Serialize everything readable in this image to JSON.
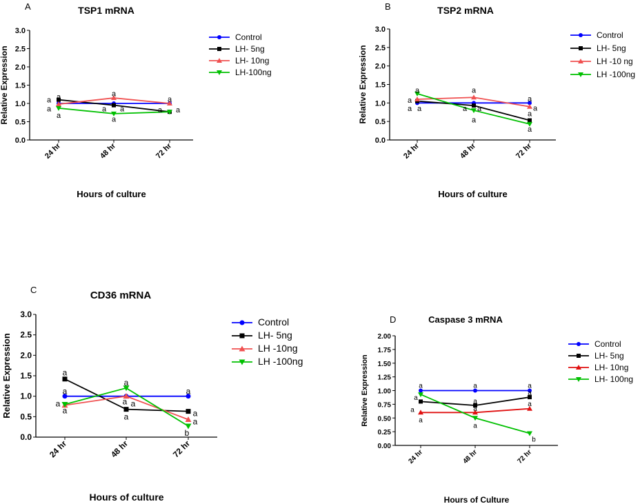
{
  "chart_data": [
    {
      "type": "line",
      "panel": "A",
      "title": "TSP1 mRNA",
      "xlabel": "Hours of culture",
      "ylabel": "Relative Expression",
      "categories": [
        "24 hr",
        "48 hr",
        "72 hr"
      ],
      "ylim": [
        0,
        3
      ],
      "yticks": [
        "0.0",
        "0.5",
        "1.0",
        "1.5",
        "2.0",
        "2.5",
        "3.0"
      ],
      "legend_position": "right",
      "series": [
        {
          "name": "Control",
          "color": "#0000ff",
          "marker": "circle",
          "values": [
            1.0,
            1.0,
            1.0
          ]
        },
        {
          "name": "LH- 5ng",
          "color": "#000000",
          "marker": "square",
          "values": [
            1.1,
            0.95,
            0.77
          ]
        },
        {
          "name": "LH- 10ng",
          "color": "#f05050",
          "marker": "triangle-up",
          "values": [
            0.98,
            1.15,
            1.0
          ]
        },
        {
          "name": "LH-100ng",
          "color": "#00c000",
          "marker": "triangle-down",
          "values": [
            0.87,
            0.72,
            0.77
          ]
        }
      ],
      "annotations": [
        {
          "text": "a",
          "category": 0,
          "y": 1.19,
          "dx": 0
        },
        {
          "text": "a",
          "category": 0,
          "y": 1.1,
          "dx": -14
        },
        {
          "text": "a",
          "category": 0,
          "y": 0.86,
          "dx": -14
        },
        {
          "text": "a",
          "category": 0,
          "y": 0.68,
          "dx": 0
        },
        {
          "text": "a",
          "category": 1,
          "y": 1.27,
          "dx": 0
        },
        {
          "text": "a",
          "category": 1,
          "y": 0.86,
          "dx": -14
        },
        {
          "text": "a",
          "category": 1,
          "y": 0.86,
          "dx": 12
        },
        {
          "text": "a",
          "category": 1,
          "y": 0.58,
          "dx": 0
        },
        {
          "text": "a",
          "category": 2,
          "y": 1.12,
          "dx": 0
        },
        {
          "text": "a",
          "category": 2,
          "y": 0.83,
          "dx": -14
        },
        {
          "text": "a",
          "category": 2,
          "y": 0.83,
          "dx": 12
        }
      ]
    },
    {
      "type": "line",
      "panel": "B",
      "title": "TSP2 mRNA",
      "xlabel": "Hours of culture",
      "ylabel": "Relative Expression",
      "categories": [
        "24 hr",
        "48 hr",
        "72 hr"
      ],
      "ylim": [
        0,
        3
      ],
      "yticks": [
        "0.0",
        "0.5",
        "1.0",
        "1.5",
        "2.0",
        "2.5",
        "3.0"
      ],
      "legend_position": "right",
      "series": [
        {
          "name": "Control",
          "color": "#0000ff",
          "marker": "circle",
          "values": [
            1.0,
            1.0,
            1.0
          ]
        },
        {
          "name": "LH- 5ng",
          "color": "#000000",
          "marker": "square",
          "values": [
            1.05,
            0.93,
            0.53
          ]
        },
        {
          "name": "LH -10 ng",
          "color": "#f05050",
          "marker": "triangle-up",
          "values": [
            1.1,
            1.15,
            0.9
          ]
        },
        {
          "name": "LH -100ng",
          "color": "#00c000",
          "marker": "triangle-down",
          "values": [
            1.25,
            0.8,
            0.43
          ]
        }
      ],
      "annotations": [
        {
          "text": "a",
          "category": 0,
          "y": 1.35,
          "dx": 0
        },
        {
          "text": "a",
          "category": 0,
          "y": 1.08,
          "dx": -11
        },
        {
          "text": "a",
          "category": 0,
          "y": 0.86,
          "dx": -11
        },
        {
          "text": "a",
          "category": 0,
          "y": 0.86,
          "dx": 3
        },
        {
          "text": "a",
          "category": 1,
          "y": 1.35,
          "dx": 0
        },
        {
          "text": "a",
          "category": 1,
          "y": 0.86,
          "dx": -13
        },
        {
          "text": "a",
          "category": 1,
          "y": 0.86,
          "dx": 8
        },
        {
          "text": "a",
          "category": 1,
          "y": 0.55,
          "dx": 0
        },
        {
          "text": "a",
          "category": 2,
          "y": 1.12,
          "dx": 0
        },
        {
          "text": "a",
          "category": 2,
          "y": 0.72,
          "dx": 0
        },
        {
          "text": "a",
          "category": 2,
          "y": 0.87,
          "dx": 8
        },
        {
          "text": "a",
          "category": 2,
          "y": 0.3,
          "dx": 0
        }
      ]
    },
    {
      "type": "line",
      "panel": "C",
      "title": "CD36 mRNA",
      "xlabel": "Hours of culture",
      "ylabel": "Relative Expression",
      "categories": [
        "24 hr",
        "48 hr",
        "72 hr"
      ],
      "ylim": [
        0,
        3
      ],
      "yticks": [
        "0.0",
        "0.5",
        "1.0",
        "1.5",
        "2.0",
        "2.5",
        "3.0"
      ],
      "legend_position": "right",
      "series": [
        {
          "name": "Control",
          "color": "#0000ff",
          "marker": "circle",
          "values": [
            1.0,
            1.0,
            1.0
          ]
        },
        {
          "name": "LH- 5ng",
          "color": "#000000",
          "marker": "square",
          "values": [
            1.42,
            0.68,
            0.63
          ]
        },
        {
          "name": "LH -10ng",
          "color": "#f05050",
          "marker": "triangle-up",
          "values": [
            0.78,
            1.0,
            0.43
          ]
        },
        {
          "name": "LH -100ng",
          "color": "#00c000",
          "marker": "triangle-down",
          "values": [
            0.8,
            1.2,
            0.27
          ]
        }
      ],
      "annotations": [
        {
          "text": "a",
          "category": 0,
          "y": 1.58,
          "dx": 0
        },
        {
          "text": "a",
          "category": 0,
          "y": 1.12,
          "dx": 0
        },
        {
          "text": "a",
          "category": 0,
          "y": 0.82,
          "dx": -10
        },
        {
          "text": "a",
          "category": 0,
          "y": 0.65,
          "dx": 0
        },
        {
          "text": "a",
          "category": 1,
          "y": 1.33,
          "dx": 0
        },
        {
          "text": "a",
          "category": 1,
          "y": 0.87,
          "dx": -2
        },
        {
          "text": "a",
          "category": 1,
          "y": 0.82,
          "dx": 10
        },
        {
          "text": "a",
          "category": 1,
          "y": 0.5,
          "dx": 0
        },
        {
          "text": "a",
          "category": 2,
          "y": 1.12,
          "dx": 0
        },
        {
          "text": "a",
          "category": 2,
          "y": 0.58,
          "dx": 10
        },
        {
          "text": "a",
          "category": 2,
          "y": 0.38,
          "dx": 10
        },
        {
          "text": "b",
          "category": 2,
          "y": 0.1,
          "dx": -2
        }
      ]
    },
    {
      "type": "line",
      "panel": "D",
      "title": "Caspase 3 mRNA",
      "xlabel": "Hours of Culture",
      "ylabel": "Relative Expression",
      "categories": [
        "24 hr",
        "48 hr",
        "72 hr"
      ],
      "ylim": [
        0,
        2
      ],
      "yticks": [
        "0.00",
        "0.25",
        "0.50",
        "0.75",
        "1.00",
        "1.25",
        "1.50",
        "1.75",
        "2.00"
      ],
      "legend_position": "right",
      "series": [
        {
          "name": "Control",
          "color": "#0000ff",
          "marker": "circle",
          "values": [
            1.0,
            1.0,
            1.0
          ]
        },
        {
          "name": "LH- 5ng",
          "color": "#000000",
          "marker": "square",
          "values": [
            0.8,
            0.73,
            0.88
          ]
        },
        {
          "name": "LH- 10ng",
          "color": "#e01010",
          "marker": "triangle-up",
          "values": [
            0.6,
            0.6,
            0.67
          ]
        },
        {
          "name": "LH- 100ng",
          "color": "#00c000",
          "marker": "triangle-down",
          "values": [
            0.93,
            0.5,
            0.22
          ]
        }
      ],
      "annotations": [
        {
          "text": "a",
          "category": 0,
          "y": 1.1,
          "dx": 0
        },
        {
          "text": "a",
          "category": 0,
          "y": 0.88,
          "dx": -7
        },
        {
          "text": "a",
          "category": 0,
          "y": 0.66,
          "dx": -12
        },
        {
          "text": "a",
          "category": 0,
          "y": 0.47,
          "dx": 0
        },
        {
          "text": "a",
          "category": 1,
          "y": 1.1,
          "dx": 0
        },
        {
          "text": "a",
          "category": 1,
          "y": 0.82,
          "dx": 0
        },
        {
          "text": "a",
          "category": 1,
          "y": 0.68,
          "dx": 0
        },
        {
          "text": "a",
          "category": 1,
          "y": 0.37,
          "dx": 0
        },
        {
          "text": "a",
          "category": 2,
          "y": 1.1,
          "dx": 0
        },
        {
          "text": "a",
          "category": 2,
          "y": 0.97,
          "dx": 0
        },
        {
          "text": "a",
          "category": 2,
          "y": 0.77,
          "dx": 0
        },
        {
          "text": "b",
          "category": 2,
          "y": 0.12,
          "dx": 6
        }
      ]
    }
  ]
}
